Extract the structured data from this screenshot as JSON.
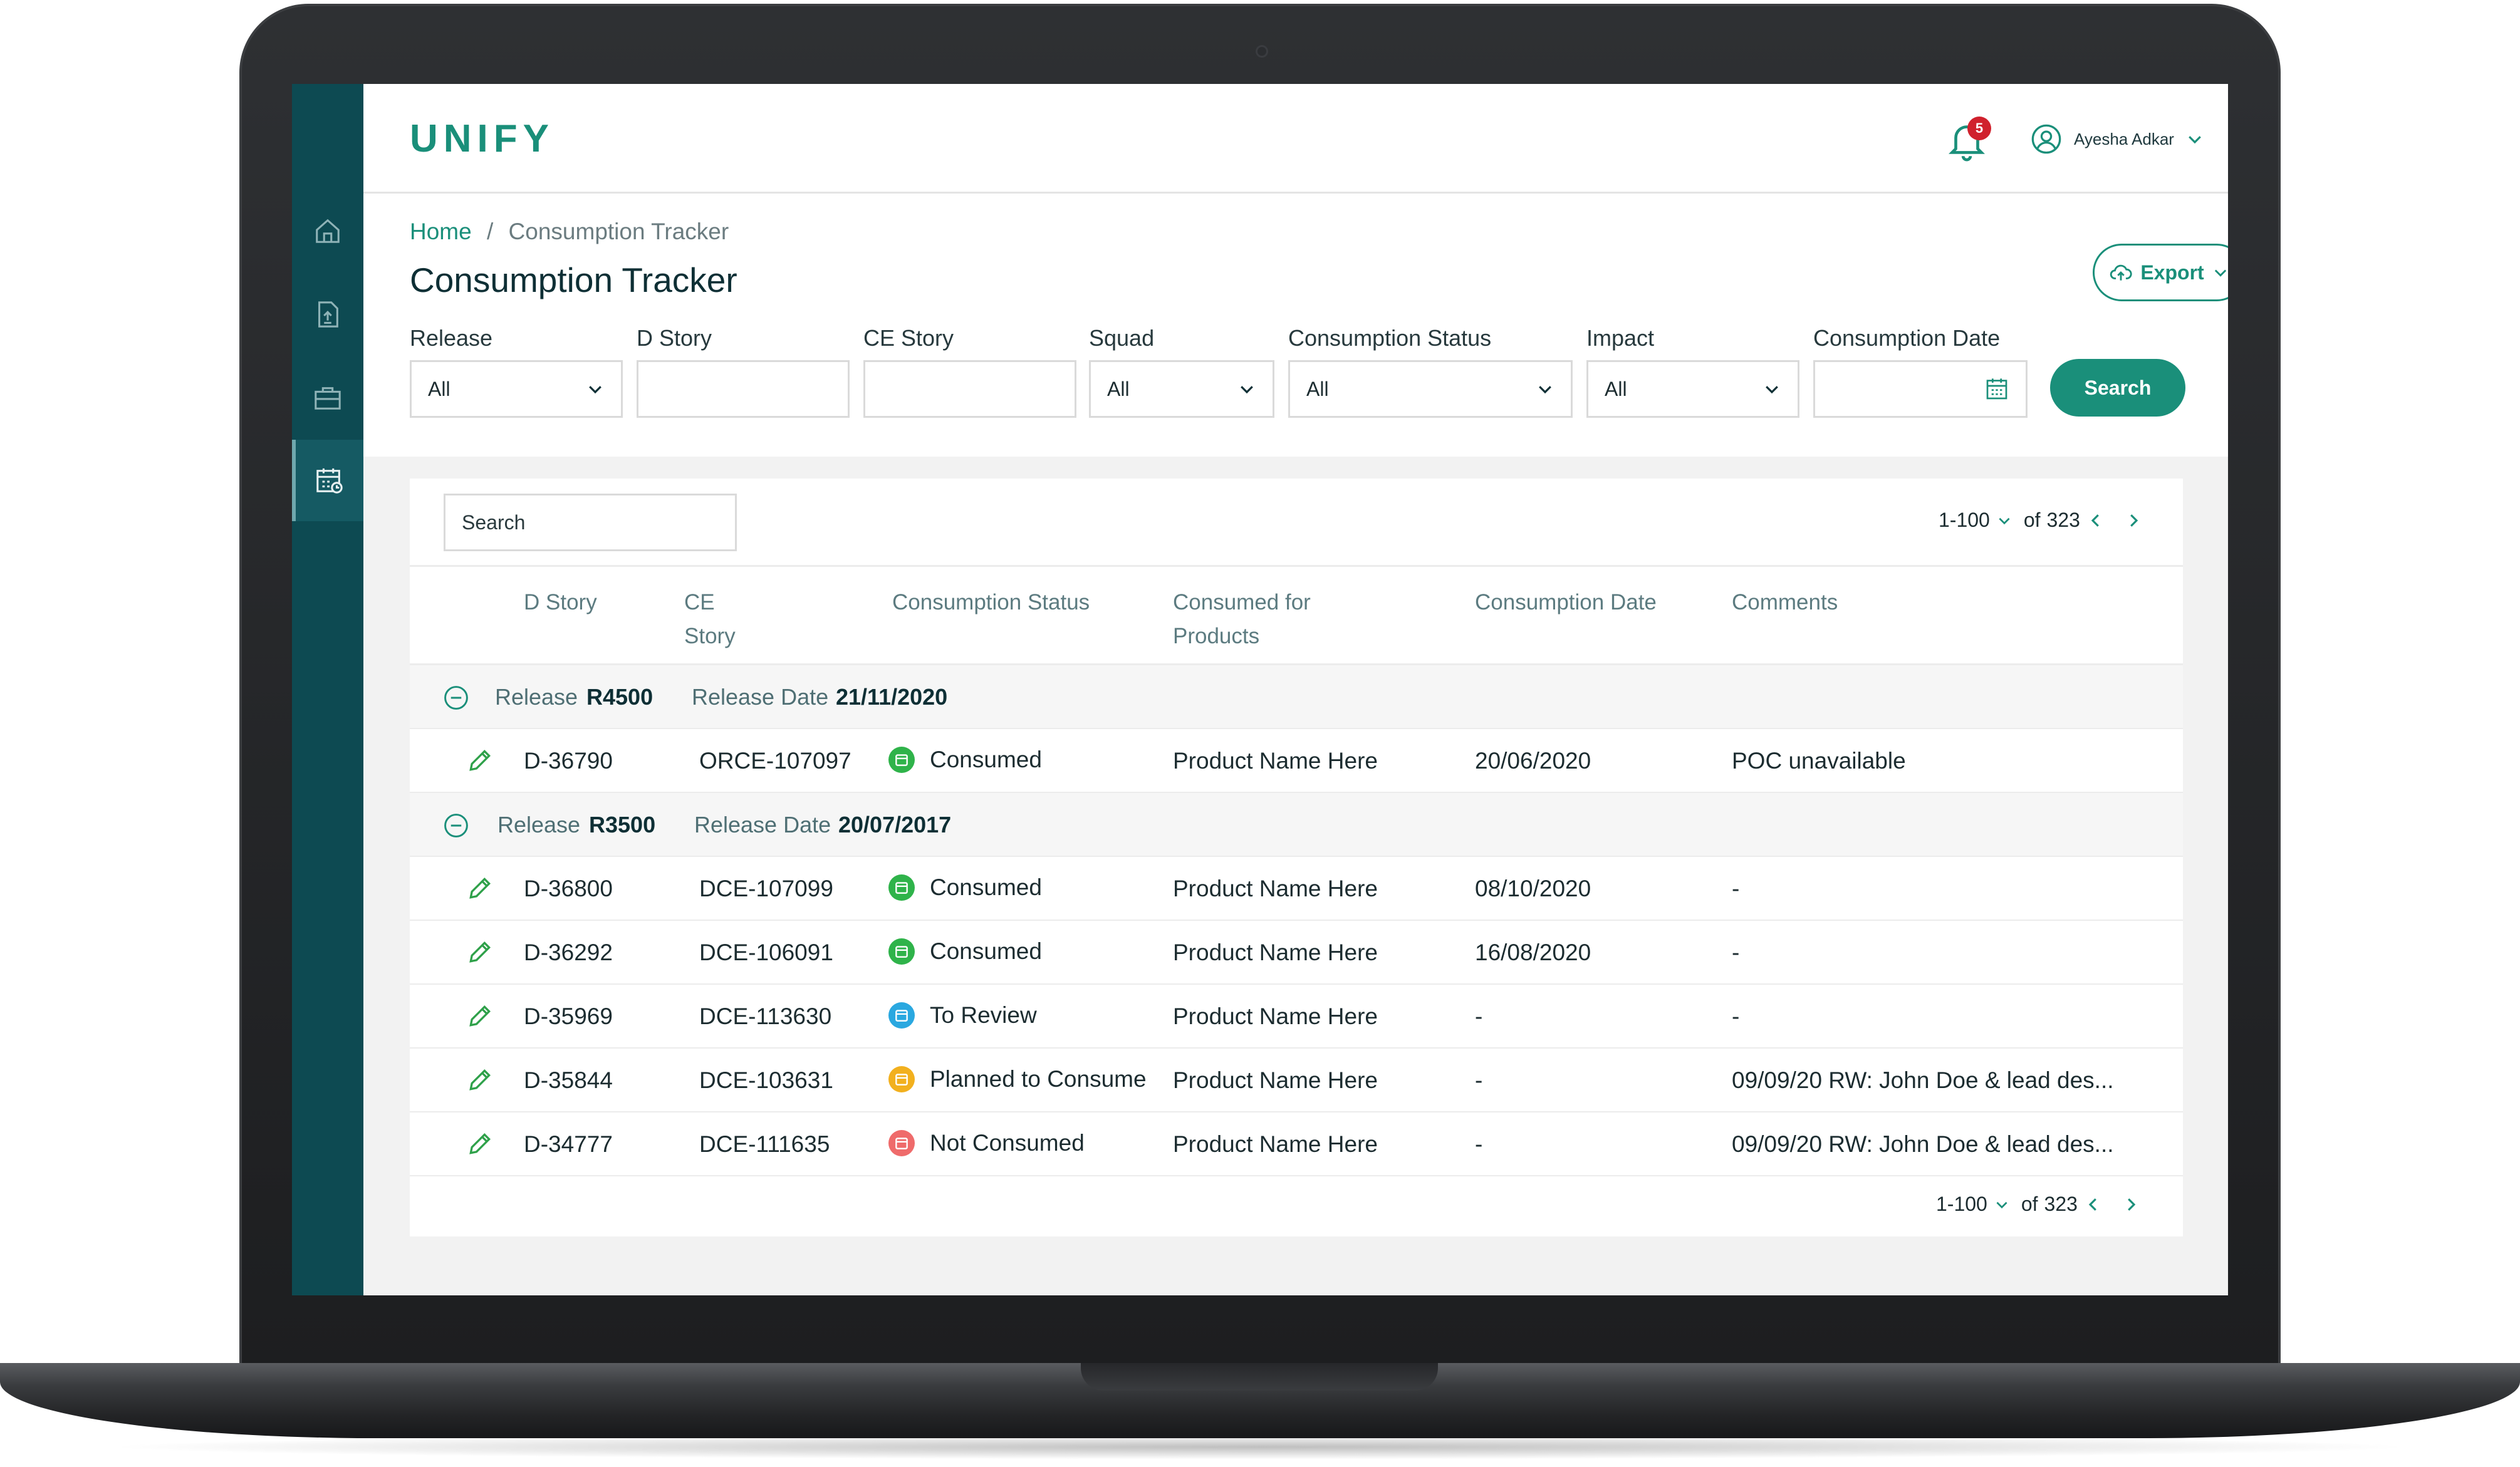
{
  "app": {
    "logo": "UNIFY",
    "notification_count": "5",
    "user_name": "Ayesha Adkar"
  },
  "sidebar": {
    "items": [
      {
        "name": "home-icon"
      },
      {
        "name": "upload-doc-icon"
      },
      {
        "name": "briefcase-icon"
      },
      {
        "name": "calendar-tracker-icon",
        "active": true
      }
    ]
  },
  "breadcrumb": {
    "home": "Home",
    "separator": "/",
    "current": "Consumption Tracker"
  },
  "page_title": "Consumption Tracker",
  "export_label": "Export",
  "filters": {
    "release": {
      "label": "Release",
      "value": "All"
    },
    "d_story": {
      "label": "D Story",
      "value": ""
    },
    "ce_story": {
      "label": "CE Story",
      "value": ""
    },
    "squad": {
      "label": "Squad",
      "value": "All"
    },
    "consumption_status": {
      "label": "Consumption Status",
      "value": "All"
    },
    "impact": {
      "label": "Impact",
      "value": "All"
    },
    "consumption_date": {
      "label": "Consumption Date",
      "value": ""
    },
    "search_button": "Search"
  },
  "table": {
    "search_placeholder": "Search",
    "pager": {
      "range": "1-100",
      "of": "of",
      "total": "323"
    },
    "headers": {
      "d_story": "D Story",
      "ce_story_1": "CE",
      "ce_story_2": "Story",
      "status": "Consumption Status",
      "products_1": "Consumed for",
      "products_2": "Products",
      "date": "Consumption Date",
      "comments": "Comments"
    },
    "groups": [
      {
        "release_label": "Release",
        "release": "R4500",
        "date_label": "Release Date",
        "date": "21/11/2020",
        "rows": [
          {
            "d_story": "D-36790",
            "ce_story": "ORCE-107097",
            "status": "Consumed",
            "status_color": "#2fb34a",
            "product": "Product Name Here",
            "date": "20/06/2020",
            "comment": "POC unavailable"
          }
        ]
      },
      {
        "release_label": "Release",
        "release": "R3500",
        "date_label": "Release Date",
        "date": "20/07/2017",
        "rows": [
          {
            "d_story": "D-36800",
            "ce_story": "DCE-107099",
            "status": "Consumed",
            "status_color": "#2fb34a",
            "product": "Product Name Here",
            "date": "08/10/2020",
            "comment": "-"
          },
          {
            "d_story": "D-36292",
            "ce_story": "DCE-106091",
            "status": "Consumed",
            "status_color": "#2fb34a",
            "product": "Product Name Here",
            "date": "16/08/2020",
            "comment": "-"
          },
          {
            "d_story": "D-35969",
            "ce_story": "DCE-113630",
            "status": "To Review",
            "status_color": "#2aa8e0",
            "product": "Product Name Here",
            "date": "-",
            "comment": "-"
          },
          {
            "d_story": "D-35844",
            "ce_story": "DCE-103631",
            "status": "Planned to Consume",
            "status_color": "#f2b01e",
            "product": "Product Name Here",
            "date": "-",
            "comment": "09/09/20 RW: John Doe & lead des..."
          },
          {
            "d_story": "D-34777",
            "ce_story": "DCE-111635",
            "status": "Not Consumed",
            "status_color": "#ef6b6b",
            "product": "Product Name Here",
            "date": "-",
            "comment": "09/09/20 RW: John Doe & lead des..."
          }
        ]
      }
    ]
  },
  "colors": {
    "accent": "#1a8f7a",
    "sidebar": "#0d4a52",
    "title": "#0e2f35"
  }
}
